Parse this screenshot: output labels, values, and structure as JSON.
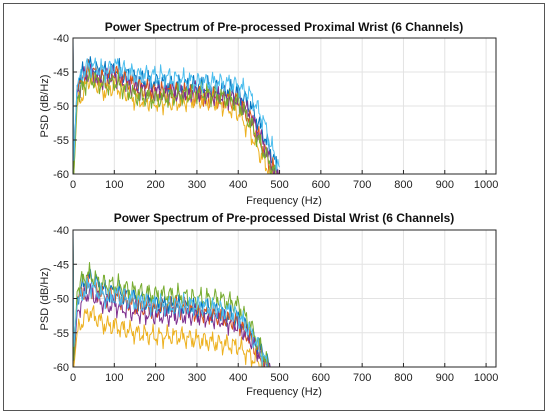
{
  "chart_data": [
    {
      "type": "line",
      "title": "Power Spectrum of Pre-processed Proximal Wrist (6 Channels)",
      "xlabel": "Frequency (Hz)",
      "ylabel": "PSD (dB/Hz)",
      "xlim": [
        0,
        1024
      ],
      "ylim": [
        -60,
        -40
      ],
      "xticks": [
        0,
        100,
        200,
        300,
        400,
        500,
        600,
        700,
        800,
        900,
        1000
      ],
      "yticks": [
        -40,
        -45,
        -50,
        -55,
        -60
      ],
      "grid": true,
      "series": [
        {
          "color": "#0072BD",
          "x": [
            0,
            2,
            10,
            25,
            40,
            60,
            80,
            100,
            150,
            200,
            250,
            300,
            350,
            400,
            430,
            460,
            480,
            500
          ],
          "y": [
            -40,
            -58,
            -47,
            -45,
            -44,
            -45,
            -45,
            -44.5,
            -46,
            -46.5,
            -47,
            -47,
            -47.5,
            -48,
            -50,
            -54,
            -57,
            -60
          ]
        },
        {
          "color": "#D95319",
          "x": [
            0,
            2,
            10,
            25,
            40,
            60,
            80,
            100,
            150,
            200,
            250,
            300,
            350,
            400,
            430,
            460,
            480,
            500
          ],
          "y": [
            -41,
            -59,
            -48,
            -46,
            -44.5,
            -45.5,
            -46,
            -45,
            -47,
            -48,
            -48,
            -48.5,
            -49,
            -49.5,
            -52,
            -56,
            -59,
            -61
          ]
        },
        {
          "color": "#EDB120",
          "x": [
            0,
            2,
            10,
            25,
            40,
            60,
            80,
            100,
            150,
            200,
            250,
            300,
            350,
            400,
            430,
            460,
            480,
            500
          ],
          "y": [
            -42,
            -60,
            -50,
            -48,
            -46,
            -47,
            -48,
            -47,
            -49,
            -49.5,
            -49.5,
            -49,
            -49.5,
            -51,
            -54,
            -58,
            -60,
            -62
          ]
        },
        {
          "color": "#7E2F8E",
          "x": [
            0,
            2,
            10,
            25,
            40,
            60,
            80,
            100,
            150,
            200,
            250,
            300,
            350,
            400,
            430,
            460,
            480,
            500
          ],
          "y": [
            -41,
            -59,
            -48,
            -46,
            -45,
            -46,
            -46,
            -45.5,
            -47.5,
            -48,
            -48,
            -48,
            -48.5,
            -49,
            -51.5,
            -55.5,
            -58.5,
            -61
          ]
        },
        {
          "color": "#77AC30",
          "x": [
            0,
            2,
            10,
            25,
            40,
            60,
            80,
            100,
            150,
            200,
            250,
            300,
            350,
            400,
            430,
            460,
            480,
            500
          ],
          "y": [
            -42,
            -60,
            -49,
            -47,
            -46,
            -46.5,
            -47,
            -46.5,
            -48.5,
            -49,
            -48.5,
            -48,
            -48.5,
            -49.5,
            -52.5,
            -56.5,
            -59,
            -61
          ]
        },
        {
          "color": "#4DBEEE",
          "x": [
            0,
            2,
            10,
            25,
            40,
            60,
            80,
            100,
            150,
            200,
            250,
            300,
            350,
            400,
            430,
            460,
            480,
            500
          ],
          "y": [
            -40,
            -58,
            -47,
            -45,
            -44,
            -44.5,
            -45,
            -44,
            -45.5,
            -45.5,
            -46,
            -46.5,
            -46.5,
            -47,
            -48.5,
            -52,
            -56,
            -59
          ]
        }
      ]
    },
    {
      "type": "line",
      "title": "Power Spectrum of Pre-processed Distal Wrist (6 Channels)",
      "xlabel": "Frequency (Hz)",
      "ylabel": "PSD (dB/Hz)",
      "xlim": [
        0,
        1024
      ],
      "ylim": [
        -60,
        -40
      ],
      "xticks": [
        0,
        100,
        200,
        300,
        400,
        500,
        600,
        700,
        800,
        900,
        1000
      ],
      "yticks": [
        -40,
        -45,
        -50,
        -55,
        -60
      ],
      "grid": true,
      "series": [
        {
          "color": "#0072BD",
          "x": [
            0,
            2,
            10,
            25,
            40,
            60,
            80,
            100,
            150,
            200,
            250,
            300,
            350,
            400,
            430,
            460,
            480
          ],
          "y": [
            -40,
            -58,
            -50,
            -48,
            -47,
            -48,
            -49,
            -49,
            -50,
            -51,
            -51,
            -51.5,
            -52,
            -53,
            -55,
            -58,
            -61
          ]
        },
        {
          "color": "#D95319",
          "x": [
            0,
            2,
            10,
            25,
            40,
            60,
            80,
            100,
            150,
            200,
            250,
            300,
            350,
            400,
            430,
            460,
            480
          ],
          "y": [
            -42,
            -60,
            -51,
            -49,
            -48,
            -49,
            -50,
            -49.5,
            -51,
            -51.5,
            -51,
            -52,
            -52.5,
            -53.5,
            -56,
            -59,
            -61
          ]
        },
        {
          "color": "#EDB120",
          "x": [
            0,
            2,
            10,
            25,
            40,
            60,
            80,
            100,
            150,
            200,
            250,
            300,
            350,
            400,
            430,
            460,
            480
          ],
          "y": [
            -43,
            -60,
            -55,
            -53,
            -52,
            -53,
            -54,
            -54,
            -55,
            -55.5,
            -55.5,
            -56,
            -56.5,
            -57,
            -58.5,
            -60,
            -62
          ]
        },
        {
          "color": "#7E2F8E",
          "x": [
            0,
            2,
            10,
            25,
            40,
            60,
            80,
            100,
            150,
            200,
            250,
            300,
            350,
            400,
            430,
            460,
            480
          ],
          "y": [
            -42,
            -59,
            -52,
            -50,
            -49,
            -50,
            -51,
            -51,
            -52,
            -52.5,
            -52.5,
            -52.5,
            -53,
            -54,
            -56,
            -59,
            -61
          ]
        },
        {
          "color": "#77AC30",
          "x": [
            0,
            2,
            10,
            25,
            40,
            60,
            80,
            100,
            150,
            200,
            250,
            300,
            350,
            400,
            430,
            460,
            480
          ],
          "y": [
            -41,
            -59,
            -49,
            -47,
            -46.5,
            -47.5,
            -48,
            -48,
            -49,
            -49.5,
            -49.5,
            -50,
            -50,
            -51,
            -54,
            -58,
            -61
          ]
        },
        {
          "color": "#4DBEEE",
          "x": [
            0,
            2,
            10,
            25,
            40,
            60,
            80,
            100,
            150,
            200,
            250,
            300,
            350,
            400,
            430,
            460,
            480
          ],
          "y": [
            -40,
            -57,
            -51,
            -49,
            -48,
            -49,
            -50,
            -49.5,
            -50.5,
            -51,
            -51,
            -51,
            -51.5,
            -52.5,
            -55,
            -58.5,
            -61
          ]
        }
      ]
    }
  ]
}
